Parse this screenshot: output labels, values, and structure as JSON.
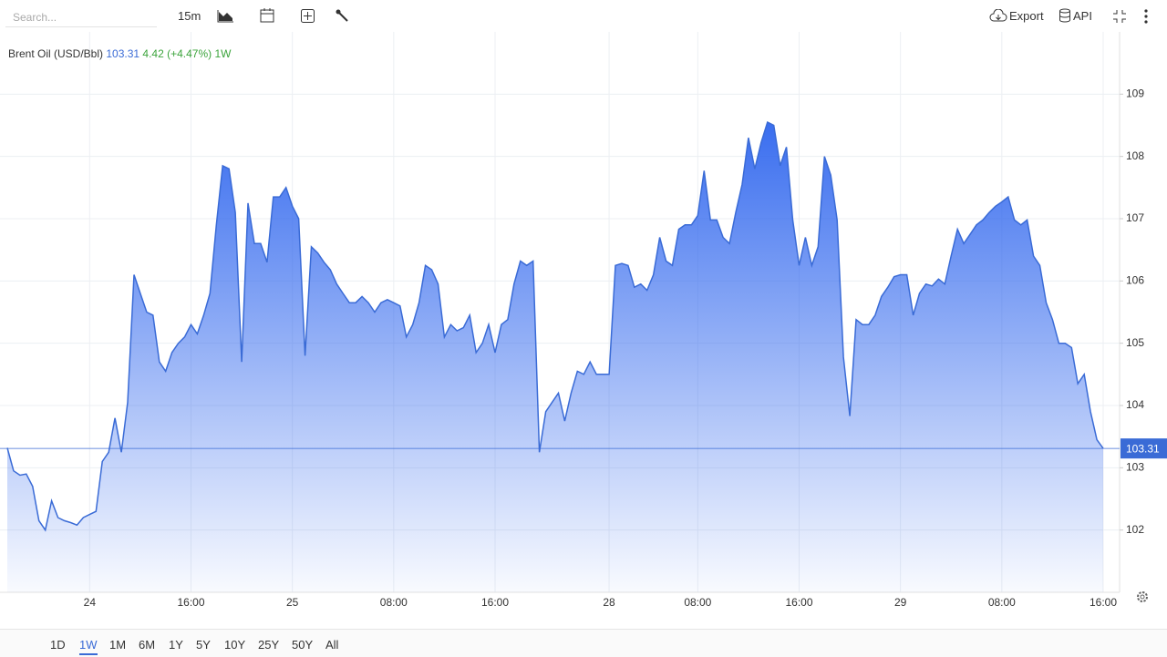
{
  "toolbar": {
    "search_placeholder": "Search...",
    "interval": "15m",
    "export": "Export",
    "api": "API"
  },
  "legend": {
    "instrument": "Brent Oil (USD/Bbl)",
    "change": "4.42",
    "change_percent": "(+4.47%)",
    "period": "1W"
  },
  "range_buttons": [
    "1D",
    "1W",
    "1M",
    "6M",
    "1Y",
    "5Y",
    "10Y",
    "25Y",
    "50Y",
    "All"
  ],
  "active_range": "1W",
  "chart_data": {
    "type": "area",
    "color": "#3a6bd6",
    "grid": true,
    "categories": [
      null,
      null,
      null,
      null,
      null,
      null,
      null,
      null,
      null,
      null,
      null,
      null,
      null,
      "24",
      null,
      null,
      null,
      null,
      null,
      null,
      null,
      null,
      null,
      null,
      null,
      null,
      null,
      null,
      null,
      "16:00",
      null,
      null,
      null,
      null,
      null,
      null,
      null,
      null,
      null,
      null,
      null,
      null,
      null,
      null,
      null,
      "25",
      null,
      null,
      null,
      null,
      null,
      null,
      null,
      null,
      null,
      null,
      null,
      null,
      null,
      null,
      null,
      "08:00",
      null,
      null,
      null,
      null,
      null,
      null,
      null,
      null,
      null,
      null,
      null,
      null,
      null,
      null,
      null,
      "16:00",
      null,
      null,
      null,
      null,
      null,
      null,
      null,
      null,
      null,
      null,
      null,
      null,
      null,
      null,
      null,
      null,
      null,
      "28",
      null,
      null,
      null,
      null,
      null,
      null,
      null,
      null,
      null,
      null,
      null,
      null,
      null,
      "08:00",
      null,
      null,
      null,
      null,
      null,
      null,
      null,
      null,
      null,
      null,
      null,
      null,
      null,
      null,
      null,
      "16:00",
      null,
      null,
      null,
      null,
      null,
      null,
      null,
      null,
      null,
      null,
      null,
      null,
      null,
      null,
      null,
      "29",
      null,
      null,
      null,
      null,
      null,
      null,
      null,
      null,
      null,
      null,
      null,
      null,
      null,
      null,
      null,
      "08:00",
      null,
      null,
      null,
      null,
      null,
      null,
      null,
      null,
      null,
      null,
      null,
      null,
      null,
      null,
      null,
      "16:00"
    ],
    "values": [
      103.32,
      102.95,
      102.88,
      102.9,
      102.7,
      102.15,
      102.0,
      102.47,
      102.2,
      102.15,
      102.12,
      102.08,
      102.2,
      102.25,
      102.3,
      103.1,
      103.25,
      103.8,
      103.25,
      104.05,
      106.1,
      105.8,
      105.5,
      105.45,
      104.7,
      104.55,
      104.85,
      105.0,
      105.1,
      105.3,
      105.15,
      105.45,
      105.8,
      106.9,
      107.85,
      107.8,
      107.1,
      104.7,
      107.25,
      106.6,
      106.6,
      106.3,
      107.35,
      107.35,
      107.5,
      107.2,
      107.0,
      104.8,
      106.55,
      106.45,
      106.3,
      106.18,
      105.95,
      105.8,
      105.65,
      105.65,
      105.75,
      105.65,
      105.5,
      105.65,
      105.7,
      105.65,
      105.6,
      105.1,
      105.3,
      105.65,
      106.25,
      106.18,
      105.95,
      105.1,
      105.3,
      105.2,
      105.25,
      105.45,
      104.85,
      105.0,
      105.3,
      104.85,
      105.3,
      105.38,
      105.95,
      106.32,
      106.25,
      106.32,
      103.25,
      103.9,
      104.05,
      104.2,
      103.75,
      104.2,
      104.55,
      104.5,
      104.7,
      104.5,
      104.5,
      104.5,
      106.25,
      106.28,
      106.25,
      105.9,
      105.95,
      105.85,
      106.1,
      106.7,
      106.32,
      106.25,
      106.83,
      106.9,
      106.9,
      107.05,
      107.77,
      106.98,
      106.98,
      106.7,
      106.6,
      107.1,
      107.55,
      108.3,
      107.8,
      108.22,
      108.55,
      108.5,
      107.85,
      108.15,
      106.98,
      106.25,
      106.7,
      106.25,
      106.55,
      108.0,
      107.7,
      106.98,
      104.78,
      103.83,
      105.38,
      105.3,
      105.3,
      105.45,
      105.75,
      105.9,
      106.07,
      106.1,
      106.1,
      105.45,
      105.8,
      105.95,
      105.92,
      106.03,
      105.95,
      106.4,
      106.83,
      106.6,
      106.75,
      106.9,
      106.98,
      107.1,
      107.2,
      107.27,
      107.35,
      106.98,
      106.9,
      106.98,
      106.4,
      106.25,
      105.65,
      105.38,
      105.0,
      105.0,
      104.93,
      104.35,
      104.5,
      103.9,
      103.45,
      103.31
    ],
    "ylim": [
      101,
      110
    ],
    "yticks": [
      102,
      103,
      104,
      105,
      106,
      107,
      108,
      109
    ]
  }
}
